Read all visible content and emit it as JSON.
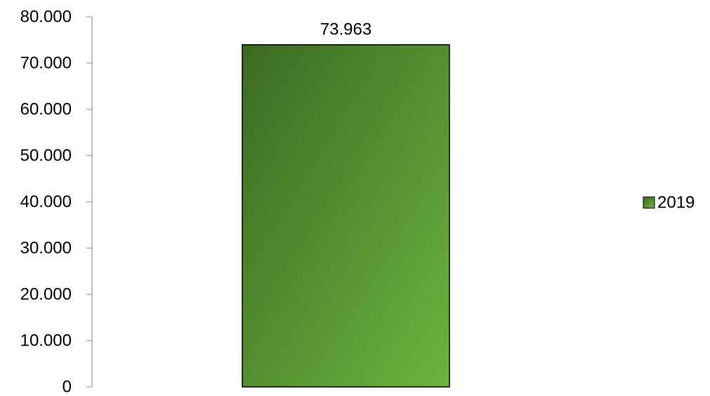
{
  "chart_data": {
    "type": "bar",
    "categories": [
      ""
    ],
    "series": [
      {
        "name": "2019",
        "values": [
          73963
        ]
      }
    ],
    "data_labels": [
      "73.963"
    ],
    "y_ticks": [
      0,
      10000,
      20000,
      30000,
      40000,
      50000,
      60000,
      70000,
      80000
    ],
    "y_tick_labels": [
      "0",
      "10.000",
      "20.000",
      "30.000",
      "40.000",
      "50.000",
      "60.000",
      "70.000",
      "80.000"
    ],
    "ylim": [
      0,
      80000
    ],
    "grid": false,
    "legend_position": "right",
    "colors": {
      "bar_dark": "#3b6b22",
      "bar_light": "#6cb33f",
      "bar_stroke": "#000000",
      "axis": "#8c8c8c"
    }
  }
}
